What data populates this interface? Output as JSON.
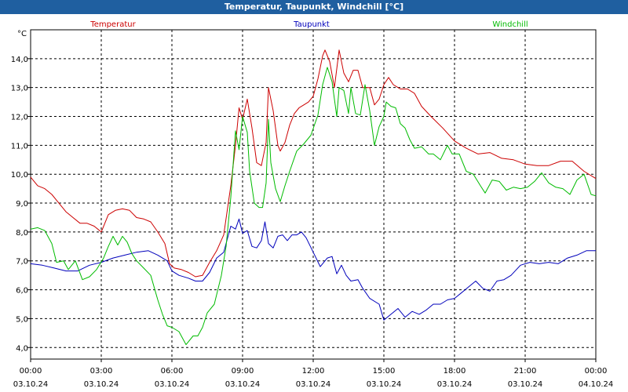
{
  "window": {
    "title": "Temperatur, Taupunkt, Windchill [°C]"
  },
  "chart_data": {
    "type": "line",
    "title": "Temperatur, Taupunkt, Windchill [°C]",
    "ylabel": "°C",
    "xlabel": "",
    "ylim": [
      3.6,
      15.0
    ],
    "y_ticks": [
      4.0,
      5.0,
      6.0,
      7.0,
      8.0,
      9.0,
      10.0,
      11.0,
      12.0,
      13.0,
      14.0
    ],
    "y_tick_labels": [
      "4,0",
      "5,0",
      "6,0",
      "7,0",
      "8,0",
      "9,0",
      "10,0",
      "11,0",
      "12,0",
      "13,0",
      "14,0"
    ],
    "xlim": [
      0,
      24
    ],
    "x_ticks": [
      0,
      3,
      6,
      9,
      12,
      15,
      18,
      21,
      24
    ],
    "x_tick_labels": [
      [
        "00:00",
        "03.10.24"
      ],
      [
        "03:00",
        "03.10.24"
      ],
      [
        "06:00",
        "03.10.24"
      ],
      [
        "09:00",
        "03.10.24"
      ],
      [
        "12:00",
        "03.10.24"
      ],
      [
        "15:00",
        "03.10.24"
      ],
      [
        "18:00",
        "03.10.24"
      ],
      [
        "21:00",
        "03.10.24"
      ],
      [
        "00:00",
        "04.10.24"
      ]
    ],
    "grid": true,
    "legend": "top",
    "series": [
      {
        "name": "Temperatur",
        "color": "#cc0000",
        "points": [
          [
            0,
            9.9
          ],
          [
            0.3,
            9.6
          ],
          [
            0.6,
            9.5
          ],
          [
            0.9,
            9.3
          ],
          [
            1.2,
            9.0
          ],
          [
            1.5,
            8.7
          ],
          [
            1.8,
            8.5
          ],
          [
            2.1,
            8.3
          ],
          [
            2.4,
            8.3
          ],
          [
            2.7,
            8.2
          ],
          [
            3.0,
            8.0
          ],
          [
            3.3,
            8.6
          ],
          [
            3.6,
            8.75
          ],
          [
            3.9,
            8.8
          ],
          [
            4.2,
            8.75
          ],
          [
            4.5,
            8.5
          ],
          [
            4.8,
            8.45
          ],
          [
            5.1,
            8.35
          ],
          [
            5.4,
            8.0
          ],
          [
            5.7,
            7.6
          ],
          [
            5.9,
            6.9
          ],
          [
            6.1,
            6.75
          ],
          [
            6.4,
            6.7
          ],
          [
            6.7,
            6.6
          ],
          [
            7.0,
            6.45
          ],
          [
            7.3,
            6.5
          ],
          [
            7.6,
            6.95
          ],
          [
            7.9,
            7.35
          ],
          [
            8.2,
            7.9
          ],
          [
            8.5,
            9.6
          ],
          [
            8.7,
            11.0
          ],
          [
            8.85,
            12.3
          ],
          [
            9.0,
            11.9
          ],
          [
            9.2,
            12.6
          ],
          [
            9.4,
            11.6
          ],
          [
            9.6,
            10.4
          ],
          [
            9.8,
            10.3
          ],
          [
            10.0,
            11.1
          ],
          [
            10.1,
            13.0
          ],
          [
            10.3,
            12.2
          ],
          [
            10.5,
            11.0
          ],
          [
            10.6,
            10.8
          ],
          [
            10.8,
            11.1
          ],
          [
            11.0,
            11.7
          ],
          [
            11.2,
            12.1
          ],
          [
            11.4,
            12.3
          ],
          [
            11.6,
            12.4
          ],
          [
            11.8,
            12.5
          ],
          [
            12.0,
            12.7
          ],
          [
            12.2,
            13.3
          ],
          [
            12.4,
            14.1
          ],
          [
            12.5,
            14.3
          ],
          [
            12.7,
            13.9
          ],
          [
            12.9,
            13.0
          ],
          [
            13.1,
            14.3
          ],
          [
            13.3,
            13.5
          ],
          [
            13.5,
            13.2
          ],
          [
            13.7,
            13.6
          ],
          [
            13.9,
            13.6
          ],
          [
            14.1,
            13.0
          ],
          [
            14.4,
            13.0
          ],
          [
            14.6,
            12.4
          ],
          [
            14.8,
            12.6
          ],
          [
            15.0,
            13.1
          ],
          [
            15.2,
            13.35
          ],
          [
            15.4,
            13.1
          ],
          [
            15.7,
            12.95
          ],
          [
            16.0,
            12.95
          ],
          [
            16.3,
            12.8
          ],
          [
            16.6,
            12.35
          ],
          [
            17.0,
            12.0
          ],
          [
            17.5,
            11.6
          ],
          [
            18.0,
            11.15
          ],
          [
            18.5,
            10.9
          ],
          [
            19.0,
            10.7
          ],
          [
            19.5,
            10.75
          ],
          [
            20.0,
            10.55
          ],
          [
            20.5,
            10.5
          ],
          [
            21.0,
            10.35
          ],
          [
            21.5,
            10.3
          ],
          [
            22.0,
            10.3
          ],
          [
            22.5,
            10.45
          ],
          [
            23.0,
            10.45
          ],
          [
            23.5,
            10.1
          ],
          [
            24.0,
            9.85
          ]
        ]
      },
      {
        "name": "Taupunkt",
        "color": "#0000bb",
        "points": [
          [
            0,
            6.9
          ],
          [
            0.5,
            6.85
          ],
          [
            1.0,
            6.75
          ],
          [
            1.5,
            6.65
          ],
          [
            2.0,
            6.65
          ],
          [
            2.5,
            6.85
          ],
          [
            3.0,
            6.95
          ],
          [
            3.5,
            7.1
          ],
          [
            4.0,
            7.2
          ],
          [
            4.5,
            7.3
          ],
          [
            5.0,
            7.35
          ],
          [
            5.4,
            7.2
          ],
          [
            5.8,
            7.0
          ],
          [
            6.0,
            6.65
          ],
          [
            6.3,
            6.5
          ],
          [
            6.7,
            6.4
          ],
          [
            7.0,
            6.3
          ],
          [
            7.3,
            6.3
          ],
          [
            7.6,
            6.6
          ],
          [
            7.9,
            7.1
          ],
          [
            8.2,
            7.3
          ],
          [
            8.5,
            8.2
          ],
          [
            8.7,
            8.1
          ],
          [
            8.85,
            8.45
          ],
          [
            9.0,
            7.95
          ],
          [
            9.2,
            8.05
          ],
          [
            9.4,
            7.5
          ],
          [
            9.6,
            7.45
          ],
          [
            9.8,
            7.7
          ],
          [
            9.95,
            8.35
          ],
          [
            10.1,
            7.6
          ],
          [
            10.3,
            7.45
          ],
          [
            10.5,
            7.85
          ],
          [
            10.7,
            7.9
          ],
          [
            10.9,
            7.7
          ],
          [
            11.1,
            7.9
          ],
          [
            11.3,
            7.9
          ],
          [
            11.5,
            8.0
          ],
          [
            11.7,
            7.8
          ],
          [
            12.0,
            7.3
          ],
          [
            12.3,
            6.8
          ],
          [
            12.6,
            7.1
          ],
          [
            12.8,
            7.15
          ],
          [
            13.0,
            6.55
          ],
          [
            13.2,
            6.85
          ],
          [
            13.4,
            6.5
          ],
          [
            13.6,
            6.3
          ],
          [
            13.9,
            6.35
          ],
          [
            14.1,
            6.05
          ],
          [
            14.4,
            5.7
          ],
          [
            14.8,
            5.5
          ],
          [
            15.0,
            4.95
          ],
          [
            15.3,
            5.15
          ],
          [
            15.6,
            5.35
          ],
          [
            15.9,
            5.05
          ],
          [
            16.2,
            5.25
          ],
          [
            16.5,
            5.15
          ],
          [
            16.8,
            5.3
          ],
          [
            17.1,
            5.5
          ],
          [
            17.4,
            5.5
          ],
          [
            17.7,
            5.65
          ],
          [
            18.0,
            5.7
          ],
          [
            18.3,
            5.9
          ],
          [
            18.6,
            6.1
          ],
          [
            18.9,
            6.3
          ],
          [
            19.2,
            6.05
          ],
          [
            19.5,
            5.95
          ],
          [
            19.8,
            6.3
          ],
          [
            20.1,
            6.35
          ],
          [
            20.4,
            6.5
          ],
          [
            20.8,
            6.85
          ],
          [
            21.2,
            6.95
          ],
          [
            21.6,
            6.9
          ],
          [
            22.0,
            6.95
          ],
          [
            22.4,
            6.9
          ],
          [
            22.8,
            7.1
          ],
          [
            23.2,
            7.2
          ],
          [
            23.6,
            7.35
          ],
          [
            24.0,
            7.35
          ]
        ]
      },
      {
        "name": "Windchill",
        "color": "#00bb00",
        "points": [
          [
            0,
            8.1
          ],
          [
            0.3,
            8.15
          ],
          [
            0.6,
            8.05
          ],
          [
            0.9,
            7.6
          ],
          [
            1.1,
            6.95
          ],
          [
            1.4,
            7.0
          ],
          [
            1.6,
            6.7
          ],
          [
            1.9,
            7.0
          ],
          [
            2.2,
            6.35
          ],
          [
            2.5,
            6.45
          ],
          [
            2.8,
            6.7
          ],
          [
            3.1,
            7.1
          ],
          [
            3.3,
            7.5
          ],
          [
            3.5,
            7.85
          ],
          [
            3.7,
            7.55
          ],
          [
            3.9,
            7.85
          ],
          [
            4.1,
            7.65
          ],
          [
            4.3,
            7.25
          ],
          [
            4.5,
            7.0
          ],
          [
            4.8,
            6.75
          ],
          [
            5.1,
            6.5
          ],
          [
            5.4,
            5.65
          ],
          [
            5.6,
            5.15
          ],
          [
            5.8,
            4.75
          ],
          [
            6.0,
            4.7
          ],
          [
            6.3,
            4.55
          ],
          [
            6.6,
            4.1
          ],
          [
            6.9,
            4.4
          ],
          [
            7.1,
            4.4
          ],
          [
            7.3,
            4.7
          ],
          [
            7.5,
            5.2
          ],
          [
            7.8,
            5.5
          ],
          [
            8.1,
            6.5
          ],
          [
            8.3,
            7.5
          ],
          [
            8.5,
            9.2
          ],
          [
            8.7,
            11.5
          ],
          [
            8.85,
            10.85
          ],
          [
            9.0,
            12.0
          ],
          [
            9.2,
            11.45
          ],
          [
            9.3,
            10.1
          ],
          [
            9.5,
            9.0
          ],
          [
            9.7,
            8.85
          ],
          [
            9.85,
            8.85
          ],
          [
            10.0,
            9.7
          ],
          [
            10.1,
            11.9
          ],
          [
            10.2,
            10.4
          ],
          [
            10.4,
            9.5
          ],
          [
            10.6,
            9.05
          ],
          [
            10.8,
            9.6
          ],
          [
            11.0,
            10.1
          ],
          [
            11.3,
            10.8
          ],
          [
            11.6,
            11.05
          ],
          [
            11.9,
            11.35
          ],
          [
            12.2,
            12.05
          ],
          [
            12.4,
            13.1
          ],
          [
            12.6,
            13.7
          ],
          [
            12.8,
            13.2
          ],
          [
            13.0,
            12.0
          ],
          [
            13.1,
            13.0
          ],
          [
            13.3,
            12.9
          ],
          [
            13.5,
            12.1
          ],
          [
            13.6,
            13.0
          ],
          [
            13.8,
            12.1
          ],
          [
            14.0,
            12.05
          ],
          [
            14.2,
            13.1
          ],
          [
            14.4,
            12.2
          ],
          [
            14.6,
            11.0
          ],
          [
            14.8,
            11.65
          ],
          [
            15.0,
            12.0
          ],
          [
            15.1,
            12.5
          ],
          [
            15.3,
            12.35
          ],
          [
            15.5,
            12.3
          ],
          [
            15.7,
            11.75
          ],
          [
            15.9,
            11.6
          ],
          [
            16.1,
            11.2
          ],
          [
            16.3,
            10.9
          ],
          [
            16.6,
            10.95
          ],
          [
            16.9,
            10.7
          ],
          [
            17.1,
            10.7
          ],
          [
            17.4,
            10.5
          ],
          [
            17.7,
            11.0
          ],
          [
            17.9,
            10.7
          ],
          [
            18.2,
            10.7
          ],
          [
            18.5,
            10.1
          ],
          [
            18.8,
            10.0
          ],
          [
            19.1,
            9.6
          ],
          [
            19.3,
            9.35
          ],
          [
            19.6,
            9.8
          ],
          [
            19.9,
            9.75
          ],
          [
            20.2,
            9.45
          ],
          [
            20.5,
            9.55
          ],
          [
            20.8,
            9.5
          ],
          [
            21.1,
            9.55
          ],
          [
            21.4,
            9.75
          ],
          [
            21.7,
            10.05
          ],
          [
            22.0,
            9.7
          ],
          [
            22.3,
            9.55
          ],
          [
            22.6,
            9.5
          ],
          [
            22.9,
            9.3
          ],
          [
            23.2,
            9.8
          ],
          [
            23.5,
            10.0
          ],
          [
            23.8,
            9.3
          ],
          [
            24.0,
            9.25
          ]
        ]
      }
    ]
  }
}
